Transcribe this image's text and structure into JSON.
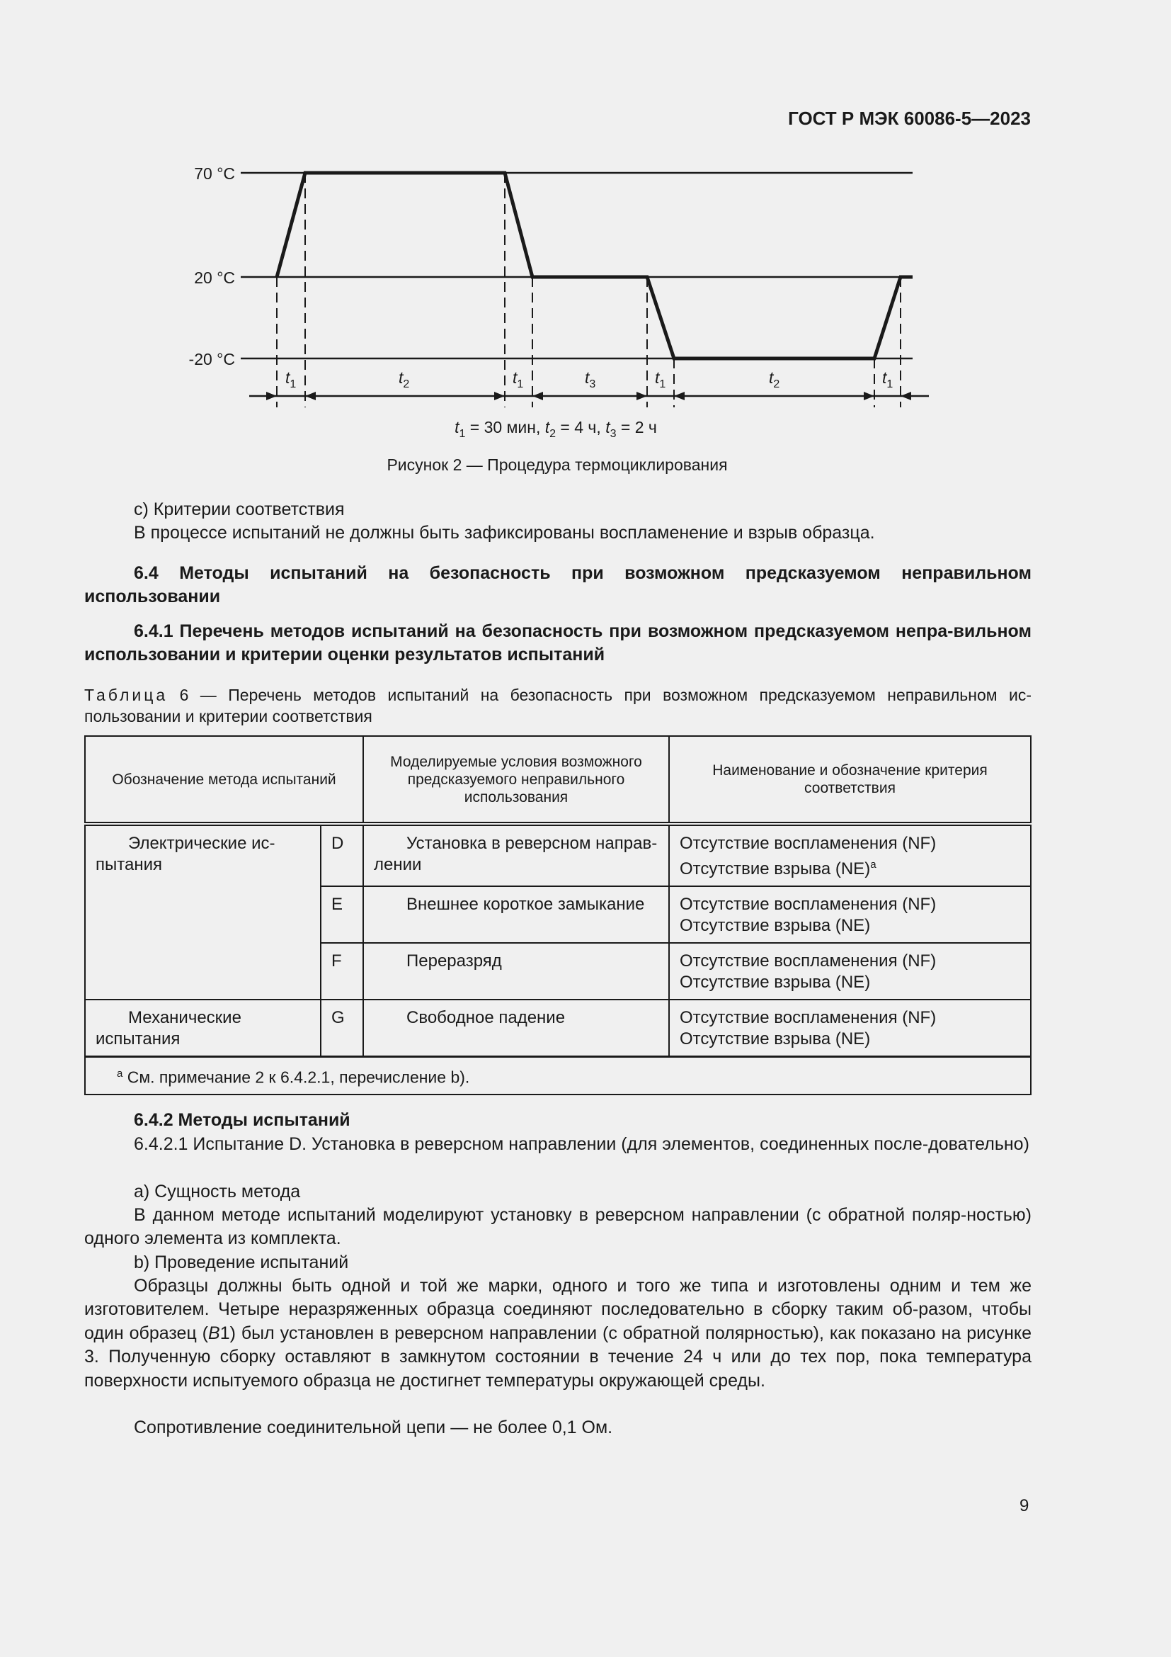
{
  "header": {
    "standard": "ГОСТ Р МЭК 60086-5—2023"
  },
  "figure": {
    "y_labels": [
      "70 °C",
      "20 °C",
      "-20 °C"
    ],
    "interval_labels": [
      {
        "t": "t",
        "sub": "1"
      },
      {
        "t": "t",
        "sub": "2"
      },
      {
        "t": "t",
        "sub": "1"
      },
      {
        "t": "t",
        "sub": "3"
      },
      {
        "t": "t",
        "sub": "1"
      },
      {
        "t": "t",
        "sub": "2"
      },
      {
        "t": "t",
        "sub": "1"
      }
    ],
    "legend": {
      "t1": "t",
      "t1_sub": "1",
      "t1_val": " = 30 мин, ",
      "t2": "t",
      "t2_sub": "2",
      "t2_val": " = 4 ч, ",
      "t3": "t",
      "t3_sub": "3",
      "t3_val": " = 2 ч"
    },
    "caption": "Рисунок 2 — Процедура термоциклирования"
  },
  "body": {
    "c_heading": "c)  Критерии соответствия",
    "c_text": "В процессе испытаний не должны быть зафиксированы воспламенение и взрыв образца.",
    "s64": "6.4  Методы испытаний на безопасность при возможном предсказуемом неправильном использовании",
    "s641": "6.4.1  Перечень методов испытаний на безопасность при возможном предсказуемом непра-вильном использовании и критерии оценки результатов испытаний",
    "table_caption_label": "Таблица",
    "table_caption": " 6 — Перечень методов испытаний на безопасность при возможном предсказуемом неправильном ис-пользовании и критерии соответствия"
  },
  "table": {
    "headers": [
      "Обозначение метода испытаний",
      "Моделируемые условия возможного предсказуемого неправильного использования",
      "Наименование и обозначение критерия соответствия"
    ],
    "groups": [
      "Электрические ис-пытания",
      "Механические испытания"
    ],
    "rows": [
      {
        "code": "D",
        "condition": "Установка в реверсном направ-лении",
        "nf": "Отсутствие воспламенения (NF)",
        "ne": "Отсутствие взрыва (NE)",
        "ne_sup": "a"
      },
      {
        "code": "E",
        "condition": "Внешнее короткое замыкание",
        "nf": "Отсутствие воспламенения (NF)",
        "ne": "Отсутствие взрыва (NE)"
      },
      {
        "code": "F",
        "condition": "Переразряд",
        "nf": "Отсутствие воспламенения (NF)",
        "ne": "Отсутствие взрыва (NE)"
      },
      {
        "code": "G",
        "condition": "Свободное падение",
        "nf": "Отсутствие воспламенения (NF)",
        "ne": "Отсутствие взрыва (NE)"
      }
    ],
    "footnote_mark": "a",
    "footnote": "См. примечание 2 к 6.4.2.1, перечисление b)."
  },
  "methods": {
    "s642": "6.4.2  Методы испытаний",
    "p1": "6.4.2.1 Испытание D. Установка в реверсном направлении (для элементов, соединенных после-довательно)",
    "a": "a)  Сущность метода",
    "p2": "В данном методе испытаний моделируют установку в реверсном направлении (с обратной поляр-ностью) одного элемента из комплекта.",
    "b": "b)  Проведение испытаний",
    "p3_1": "Образцы должны быть одной и той же марки, одного и того же типа и изготовлены одним и тем же изготовителем. Четыре неразряженных образца соединяют последовательно в сборку таким об-разом, чтобы один образец (",
    "p3_it": "B",
    "p3_2": "1) был установлен в реверсном направлении (с обратной полярностью), как показано на рисунке 3. Полученную сборку оставляют в замкнутом состоянии в течение 24 ч или до тех пор, пока температура поверхности испытуемого образца не достигнет температуры окружающей среды.",
    "p4": "Сопротивление соединительной цепи — не более 0,1 Ом."
  },
  "page_number": "9"
}
